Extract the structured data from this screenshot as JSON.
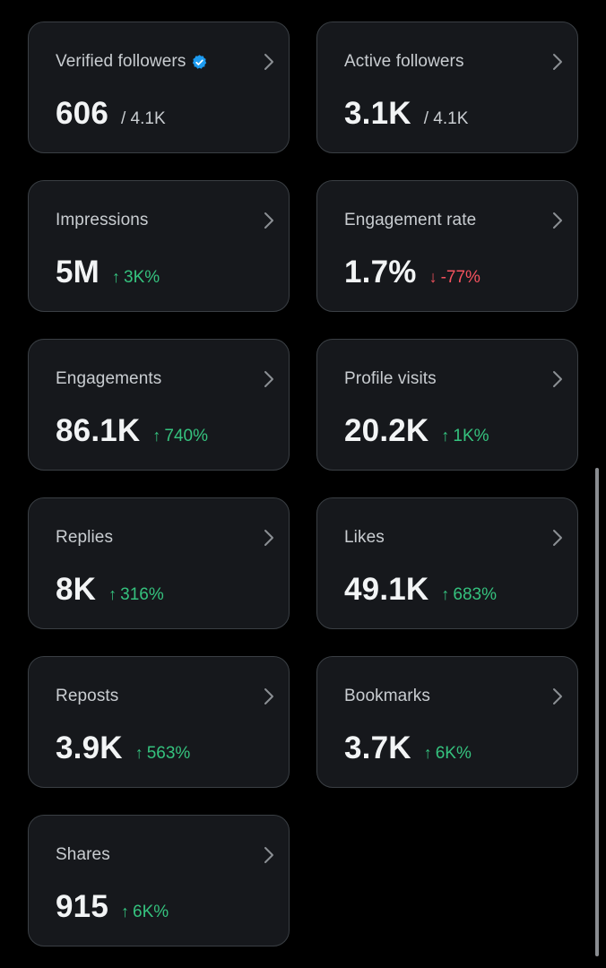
{
  "colors": {
    "background": "#000000",
    "card": "#16181c",
    "border": "#3a3f44",
    "positive": "#35c27e",
    "negative": "#f4525e",
    "verified": "#1d9bf0"
  },
  "cards": [
    {
      "label": "Verified followers",
      "verified_icon": "verified-badge-icon",
      "value": "606",
      "sub": "/ 4.1K"
    },
    {
      "label": "Active followers",
      "value": "3.1K",
      "sub": "/ 4.1K"
    },
    {
      "label": "Impressions",
      "value": "5M",
      "change": "3K%",
      "direction": "up"
    },
    {
      "label": "Engagement rate",
      "value": "1.7%",
      "change": "-77%",
      "direction": "down"
    },
    {
      "label": "Engagements",
      "value": "86.1K",
      "change": "740%",
      "direction": "up"
    },
    {
      "label": "Profile visits",
      "value": "20.2K",
      "change": "1K%",
      "direction": "up"
    },
    {
      "label": "Replies",
      "value": "8K",
      "change": "316%",
      "direction": "up"
    },
    {
      "label": "Likes",
      "value": "49.1K",
      "change": "683%",
      "direction": "up"
    },
    {
      "label": "Reposts",
      "value": "3.9K",
      "change": "563%",
      "direction": "up"
    },
    {
      "label": "Bookmarks",
      "value": "3.7K",
      "change": "6K%",
      "direction": "up"
    },
    {
      "label": "Shares",
      "value": "915",
      "change": "6K%",
      "direction": "up"
    }
  ],
  "icons": {
    "chevron": "chevron-right-icon",
    "up_arrow": "↑",
    "down_arrow": "↓"
  }
}
